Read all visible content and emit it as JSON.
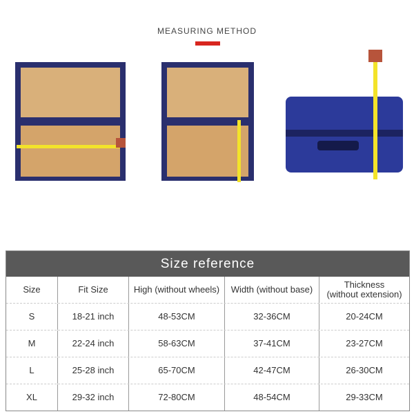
{
  "heading": "MEASURING METHOD",
  "accent_color": "#d8261f",
  "table": {
    "title": "Size reference",
    "columns": [
      "Size",
      "Fit Size",
      "High (without wheels)",
      "Width (without base)",
      "Thickness\n(without extension)"
    ],
    "rows": [
      [
        "S",
        "18-21 inch",
        "48-53CM",
        "32-36CM",
        "20-24CM"
      ],
      [
        "M",
        "22-24 inch",
        "58-63CM",
        "37-41CM",
        "23-27CM"
      ],
      [
        "L",
        "25-28 inch",
        "65-70CM",
        "42-47CM",
        "26-30CM"
      ],
      [
        "XL",
        "29-32 inch",
        "72-80CM",
        "48-54CM",
        "29-33CM"
      ]
    ]
  }
}
